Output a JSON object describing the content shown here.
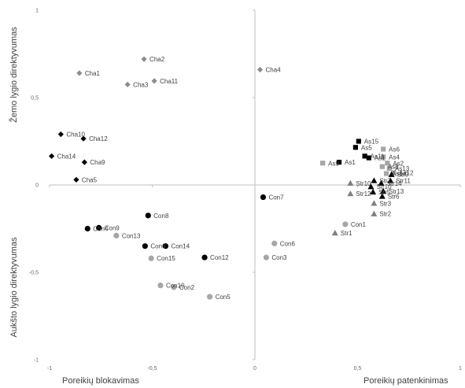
{
  "chart_data": {
    "type": "scatter",
    "title": "",
    "xlabel_left": "Poreikių blokavimas",
    "xlabel_right": "Poreikių patenkinimas",
    "ylabel_top": "Žemo lygio direktyvumas",
    "ylabel_bottom": "Aukšto lygio direktyvumas",
    "xlim": [
      -1,
      1
    ],
    "ylim": [
      -1,
      1
    ],
    "x_ticks": [
      {
        "value": -1,
        "label": "-1"
      },
      {
        "value": -0.5,
        "label": "-0,5"
      },
      {
        "value": 0,
        "label": "0"
      },
      {
        "value": 0.5,
        "label": "0,5"
      },
      {
        "value": 1,
        "label": "1"
      }
    ],
    "y_ticks": [
      {
        "value": 1,
        "label": "1"
      },
      {
        "value": 0.5,
        "label": "0,5"
      },
      {
        "value": 0,
        "label": "0"
      },
      {
        "value": -0.5,
        "label": "-0,5"
      },
      {
        "value": -1,
        "label": "-1"
      }
    ],
    "grid": false,
    "legend": "none",
    "series": [
      {
        "group": "Cha",
        "marker": "diamond",
        "color": "#8c8c8c",
        "points": [
          {
            "label": "Cha1",
            "x": -0.855,
            "y": 0.64
          },
          {
            "label": "Cha2",
            "x": -0.54,
            "y": 0.72
          },
          {
            "label": "Cha3",
            "x": -0.62,
            "y": 0.575
          },
          {
            "label": "Cha11",
            "x": -0.49,
            "y": 0.595
          },
          {
            "label": "Cha4",
            "x": 0.025,
            "y": 0.66
          }
        ]
      },
      {
        "group": "Cha",
        "marker": "diamond",
        "color": "#000000",
        "points": [
          {
            "label": "Cha10",
            "x": -0.945,
            "y": 0.29
          },
          {
            "label": "Cha12",
            "x": -0.835,
            "y": 0.265
          },
          {
            "label": "Cha14",
            "x": -0.99,
            "y": 0.165
          },
          {
            "label": "Cha9",
            "x": -0.83,
            "y": 0.13
          },
          {
            "label": "Cha5",
            "x": -0.87,
            "y": 0.03
          }
        ]
      },
      {
        "group": "Con",
        "marker": "circle",
        "color": "#000000",
        "points": [
          {
            "label": "Con7",
            "x": 0.04,
            "y": -0.07
          },
          {
            "label": "Con8",
            "x": -0.52,
            "y": -0.175
          },
          {
            "label": "Con9",
            "x": -0.76,
            "y": -0.245
          },
          {
            "label": "Con4",
            "x": -0.815,
            "y": -0.25
          },
          {
            "label": "Con6",
            "x": -0.535,
            "y": -0.35
          },
          {
            "label": "Con14",
            "x": -0.435,
            "y": -0.35
          },
          {
            "label": "Con12",
            "x": -0.245,
            "y": -0.415
          }
        ]
      },
      {
        "group": "Con",
        "marker": "circle",
        "color": "#a6a6a6",
        "points": [
          {
            "label": "Con13",
            "x": -0.675,
            "y": -0.29
          },
          {
            "label": "Con15",
            "x": -0.505,
            "y": -0.42
          },
          {
            "label": "Con10",
            "x": -0.46,
            "y": -0.575
          },
          {
            "label": "Con2",
            "x": -0.395,
            "y": -0.585
          },
          {
            "label": "Con5",
            "x": -0.22,
            "y": -0.64
          },
          {
            "label": "Con6",
            "x": 0.095,
            "y": -0.335
          },
          {
            "label": "Con3",
            "x": 0.055,
            "y": -0.415
          },
          {
            "label": "Con1",
            "x": 0.44,
            "y": -0.225
          }
        ]
      },
      {
        "group": "As",
        "marker": "square",
        "color": "#000000",
        "points": [
          {
            "label": "As15",
            "x": 0.505,
            "y": 0.25
          },
          {
            "label": "As5",
            "x": 0.49,
            "y": 0.215
          },
          {
            "label": "As11",
            "x": 0.535,
            "y": 0.165
          },
          {
            "label": "As1",
            "x": 0.41,
            "y": 0.13
          },
          {
            "label": "As1",
            "x": 0.555,
            "y": 0.155
          }
        ]
      },
      {
        "group": "As",
        "marker": "square",
        "color": "#a6a6a6",
        "points": [
          {
            "label": "As9",
            "x": 0.33,
            "y": 0.125
          },
          {
            "label": "As6",
            "x": 0.625,
            "y": 0.205
          },
          {
            "label": "As4",
            "x": 0.625,
            "y": 0.16
          },
          {
            "label": "As2",
            "x": 0.645,
            "y": 0.125
          },
          {
            "label": "As8",
            "x": 0.62,
            "y": 0.105
          },
          {
            "label": "As13",
            "x": 0.655,
            "y": 0.095
          },
          {
            "label": "As14",
            "x": 0.64,
            "y": 0.065
          },
          {
            "label": "As12",
            "x": 0.675,
            "y": 0.07
          }
        ]
      },
      {
        "group": "Str",
        "marker": "triangle",
        "color": "#000000",
        "points": [
          {
            "label": "Str9",
            "x": 0.665,
            "y": 0.06
          },
          {
            "label": "Str11",
            "x": 0.66,
            "y": 0.025
          },
          {
            "label": "Str7",
            "x": 0.58,
            "y": 0.025
          },
          {
            "label": "Str14",
            "x": 0.615,
            "y": 0.01
          },
          {
            "label": "Str10",
            "x": 0.565,
            "y": -0.01
          },
          {
            "label": "Str5",
            "x": 0.575,
            "y": -0.04
          },
          {
            "label": "Str13",
            "x": 0.625,
            "y": -0.035
          },
          {
            "label": "Str6",
            "x": 0.62,
            "y": -0.065
          }
        ]
      },
      {
        "group": "Str",
        "marker": "triangle",
        "color": "#808080",
        "points": [
          {
            "label": "Str10",
            "x": 0.465,
            "y": 0.01
          },
          {
            "label": "Str12",
            "x": 0.465,
            "y": -0.05
          },
          {
            "label": "Str3",
            "x": 0.58,
            "y": -0.105
          },
          {
            "label": "Str2",
            "x": 0.58,
            "y": -0.165
          },
          {
            "label": "Str1",
            "x": 0.39,
            "y": -0.275
          }
        ]
      }
    ]
  }
}
